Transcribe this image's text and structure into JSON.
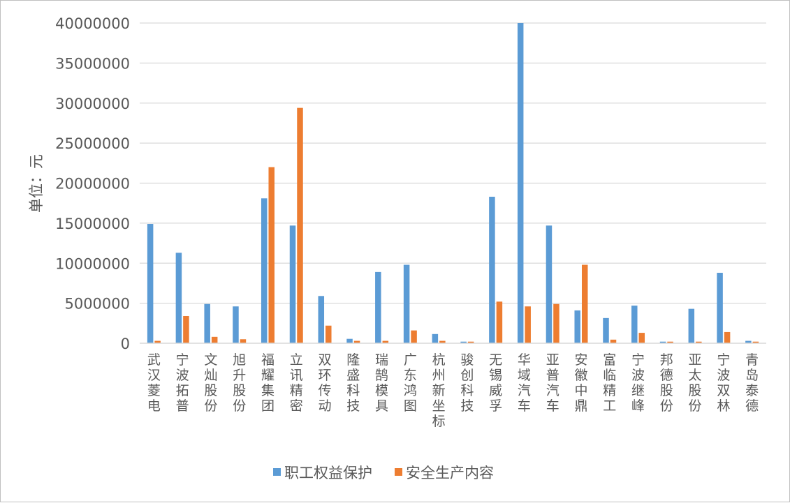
{
  "chart_data": {
    "type": "bar",
    "title": "",
    "ylabel": "单位：元",
    "ylim": [
      0,
      40000000
    ],
    "yticks": [
      0,
      5000000,
      10000000,
      15000000,
      20000000,
      25000000,
      30000000,
      35000000,
      40000000
    ],
    "grid": true,
    "legend_position": "bottom",
    "categories": [
      "武汉菱电",
      "宁波拓普",
      "文灿股份",
      "旭升股份",
      "福耀集团",
      "立讯精密",
      "双环传动",
      "隆盛科技",
      "瑞鹄模具",
      "广东鸿图",
      "杭州新坐标",
      "骏创科技",
      "无锡威孚",
      "华域汽车",
      "亚普汽车",
      "安徽中鼎",
      "富临精工",
      "宁波继峰",
      "邦德股份",
      "亚太股份",
      "宁波双林",
      "青岛泰德"
    ],
    "series": [
      {
        "name": "职工权益保护",
        "color": "#5b9bd5",
        "values": [
          14900000,
          11300000,
          4900000,
          4600000,
          18100000,
          14700000,
          5900000,
          550000,
          8900000,
          9800000,
          1150000,
          200000,
          18300000,
          40000000,
          14700000,
          4100000,
          3150000,
          4700000,
          200000,
          4300000,
          8800000,
          300000
        ]
      },
      {
        "name": "安全生产内容",
        "color": "#ed7d31",
        "values": [
          300000,
          3400000,
          800000,
          500000,
          22000000,
          29400000,
          2200000,
          300000,
          300000,
          1600000,
          300000,
          200000,
          5200000,
          4600000,
          4900000,
          9800000,
          450000,
          1300000,
          200000,
          200000,
          1400000,
          200000
        ]
      }
    ]
  }
}
